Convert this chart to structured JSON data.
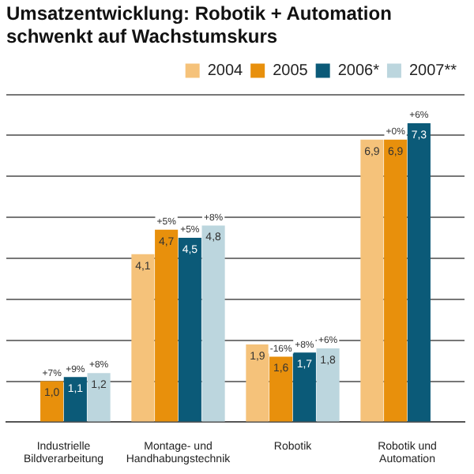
{
  "chart_data": {
    "type": "bar",
    "title": "Umsatzentwicklung: Robotik + Automation schwenkt auf Wachstumskurs",
    "categories": [
      "Industrielle Bildverarbeitung",
      "Montage- und Handhabungstechnik",
      "Robotik",
      "Robotik und Automation"
    ],
    "series": [
      {
        "name": "2004",
        "color": "#f5c27a",
        "values": [
          null,
          4.1,
          1.9,
          6.9
        ],
        "value_labels": [
          null,
          "4,1",
          "1,9",
          "6,9"
        ]
      },
      {
        "name": "2005",
        "color": "#e8900c",
        "values": [
          1.0,
          4.7,
          1.6,
          6.9
        ],
        "value_labels": [
          "1,0",
          "4,7",
          "1,6",
          "6,9"
        ]
      },
      {
        "name": "2006*",
        "color": "#0b5a78",
        "values": [
          1.1,
          4.5,
          1.7,
          7.3
        ],
        "value_labels": [
          "1,1",
          "4,5",
          "1,7",
          "7,3"
        ]
      },
      {
        "name": "2007**",
        "color": "#bcd6de",
        "values": [
          1.2,
          4.8,
          1.8,
          null
        ],
        "value_labels": [
          "1,2",
          "4,8",
          "1,8",
          null
        ]
      }
    ],
    "annotations": [
      {
        "text": "+7%",
        "x": "Industrielle Bildverarbeitung",
        "y": 1.0
      },
      {
        "text": "+9%",
        "x": "Industrielle Bildverarbeitung",
        "y": 1.1
      },
      {
        "text": "+8%",
        "x": "Industrielle Bildverarbeitung",
        "y": 1.2
      },
      {
        "text": "+5%",
        "x": "Montage- und Handhabungstechnik",
        "y": 4.7
      },
      {
        "text": "+5%",
        "x": "Montage- und Handhabungstechnik",
        "y": 4.5
      },
      {
        "text": "+8%",
        "x": "Montage- und Handhabungstechnik",
        "y": 4.8
      },
      {
        "text": "-16%",
        "x": "Robotik",
        "y": 1.6
      },
      {
        "text": "+8%",
        "x": "Robotik",
        "y": 1.7
      },
      {
        "text": "+6%",
        "x": "Robotik",
        "y": 1.8
      },
      {
        "text": "+0%",
        "x": "Robotik und Automation",
        "y": 6.9
      },
      {
        "text": "+6%",
        "x": "Robotik und Automation",
        "y": 7.3
      }
    ],
    "ylim": [
      0,
      8
    ],
    "yticks": [
      {
        "value": 0,
        "label": null
      },
      {
        "value": 1,
        "label": null
      },
      {
        "value": 2,
        "label": null
      },
      {
        "value": 3,
        "label": null
      },
      {
        "value": 4,
        "label": null
      },
      {
        "value": 5,
        "label": null
      },
      {
        "value": 6,
        "label": null
      },
      {
        "value": 7,
        "label": null
      },
      {
        "value": 8,
        "label": null
      }
    ],
    "tick_labels": "x",
    "grid": "y",
    "legend": "top"
  }
}
